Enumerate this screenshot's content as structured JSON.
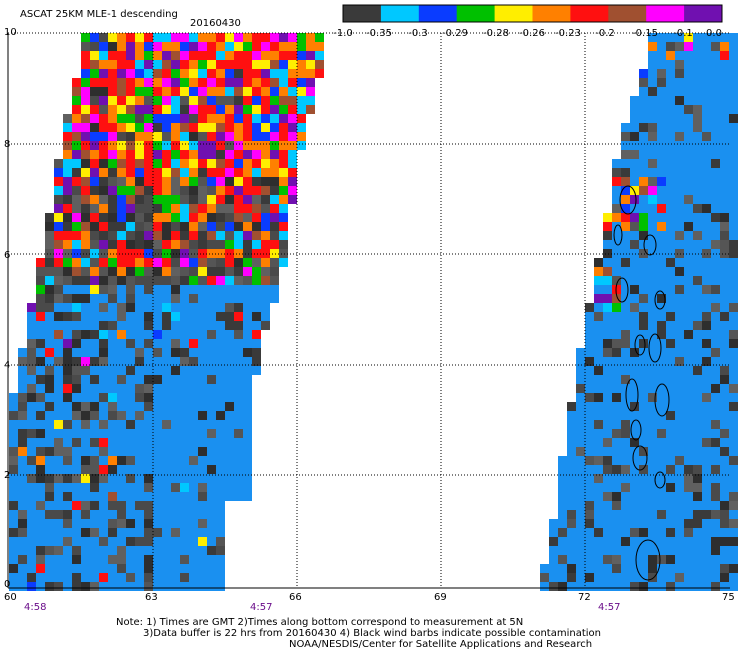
{
  "title": "ASCAT 25KM MLE-1 descending",
  "date": "20160430",
  "colorbar": {
    "colors": [
      "#3a3a3a",
      "#00c8ff",
      "#0a3cff",
      "#00c000",
      "#ffee00",
      "#ff8000",
      "#ff1010",
      "#a05030",
      "#ff00ff",
      "#7010b0"
    ],
    "tick_labels": [
      "-1.0",
      "-0.35",
      "-0.3",
      "-0.29",
      "-0.28",
      "-0.26",
      "-0.23",
      "-0.2",
      "-0.15",
      "-0.1",
      "0.0"
    ]
  },
  "axes": {
    "x_ticks": [
      "60",
      "63",
      "66",
      "69",
      "72",
      "75"
    ],
    "y_ticks": [
      "0",
      "2",
      "4",
      "6",
      "8",
      "10"
    ]
  },
  "pass_times": [
    "4:58",
    "4:57",
    "4:57"
  ],
  "notes": {
    "line1": "Note: 1) Times are GMT 2)Times along bottom correspond to measurement at 5N",
    "line2": "3)Data buffer is 22 hrs from 20160430 4) Black wind barbs indicate possible contamination",
    "line3": "NOAA/NESDIS/Center for Satellite Applications and Research"
  },
  "colors": {
    "ocean_fill": "#1a90f0",
    "dark_cell": "#3a3a3a",
    "gray_cell": "#606060",
    "grid_line": "#000000",
    "time_label": "#6a0d8a"
  }
}
